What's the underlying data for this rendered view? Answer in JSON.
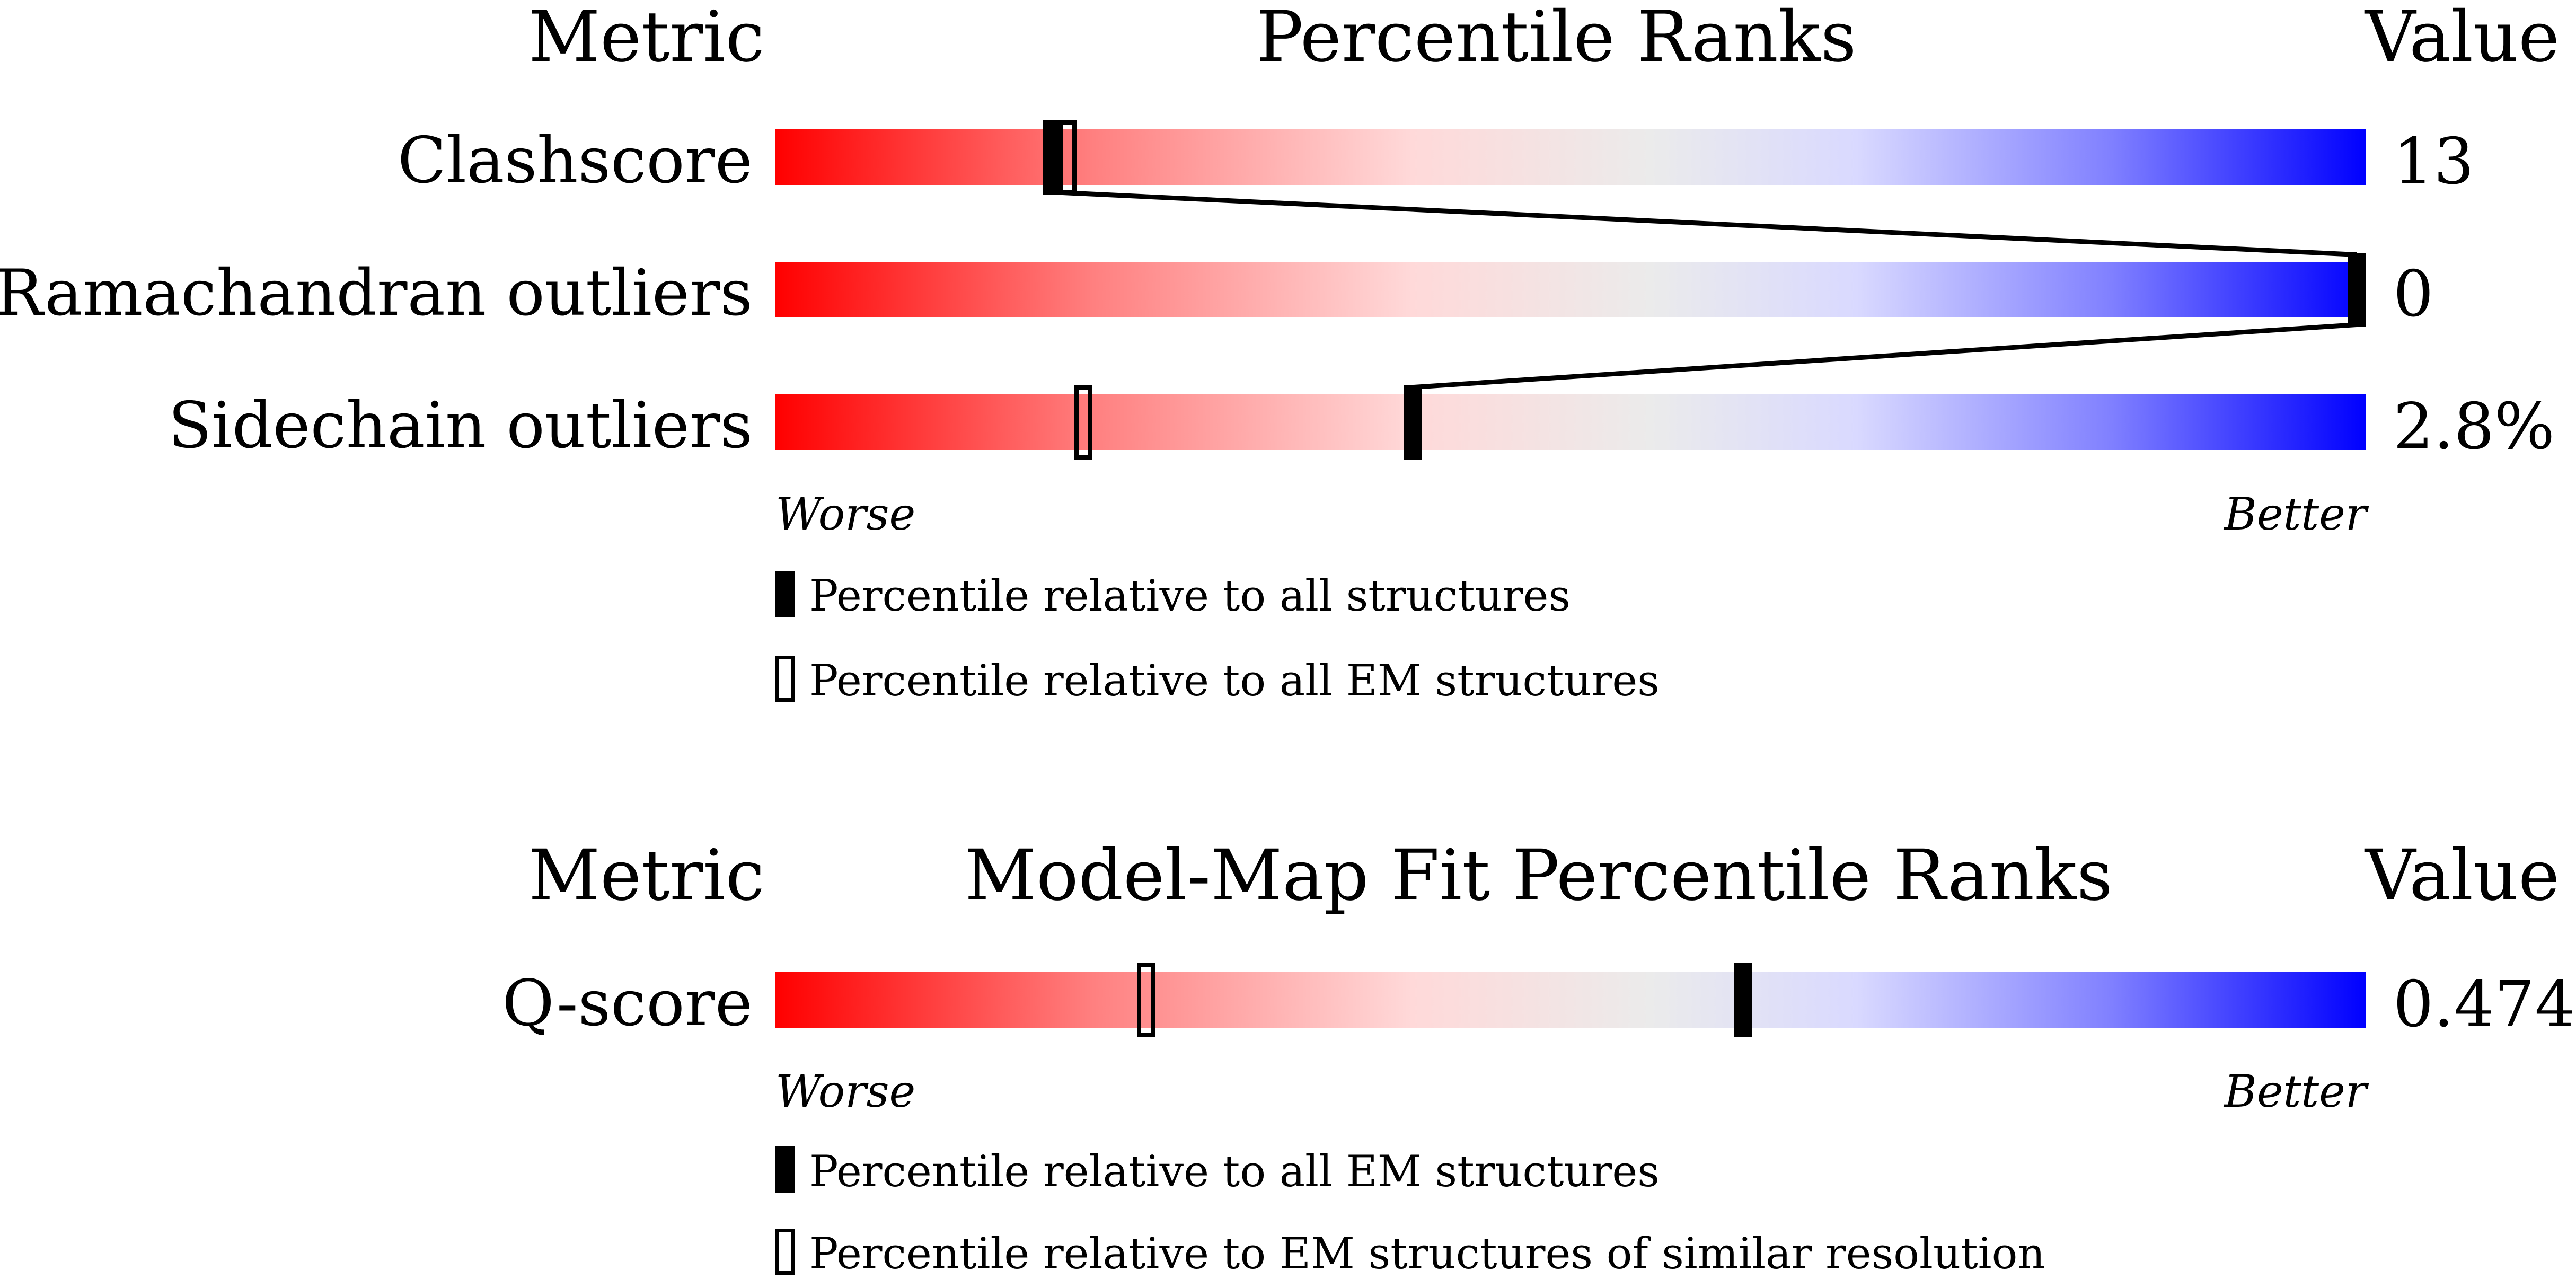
{
  "chart_data": [
    {
      "type": "percentile-bar",
      "header": {
        "metric": "Metric",
        "title": "Percentile Ranks",
        "value": "Value"
      },
      "rows": [
        {
          "label": "Clashscore",
          "value": "13",
          "percentile_all": 17,
          "percentile_em": 18
        },
        {
          "label": "Ramachandran outliers",
          "value": "0",
          "percentile_all": 100,
          "percentile_em": 100
        },
        {
          "label": "Sidechain outliers",
          "value": "2.8%",
          "percentile_all": 40,
          "percentile_em": 19
        }
      ],
      "axis": {
        "left": "Worse",
        "right": "Better",
        "range": [
          0,
          100
        ]
      },
      "legend": {
        "filled": "Percentile relative to all structures",
        "hollow": "Percentile relative to all EM structures"
      }
    },
    {
      "type": "percentile-bar",
      "header": {
        "metric": "Metric",
        "title": "Model-Map Fit Percentile Ranks",
        "value": "Value"
      },
      "rows": [
        {
          "label": "Q-score",
          "value": "0.474",
          "percentile_all": 61,
          "percentile_em": 23
        }
      ],
      "axis": {
        "left": "Worse",
        "right": "Better",
        "range": [
          0,
          100
        ]
      },
      "legend": {
        "filled": "Percentile relative to all EM structures",
        "hollow": "Percentile relative to EM structures of similar resolution"
      }
    }
  ],
  "colors": {
    "worse": "#ff0000",
    "neutral": "#ebebeb",
    "better": "#0000ff",
    "marker": "#000000"
  }
}
